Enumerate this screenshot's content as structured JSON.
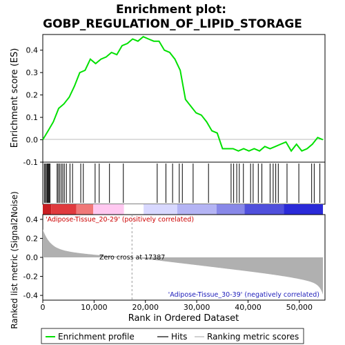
{
  "chart_data": {
    "type": "line",
    "title": "Enrichment plot:",
    "subtitle": "GOBP_REGULATION_OF_LIPID_STORAGE",
    "xlabel": "Rank in Ordered Dataset",
    "ylabel_top": "Enrichment score (ES)",
    "ylabel_bottom": "Ranked list metric (Signal2Noise)",
    "xlim": [
      0,
      55000
    ],
    "es_ylim": [
      -0.1,
      0.47
    ],
    "metric_ylim": [
      -0.45,
      0.45
    ],
    "x_ticks": [
      0,
      10000,
      20000,
      30000,
      40000,
      50000
    ],
    "x_tick_labels": [
      "0",
      "10,000",
      "20,000",
      "30,000",
      "40,000",
      "50,000"
    ],
    "es_ticks": [
      -0.1,
      0.0,
      0.1,
      0.2,
      0.3,
      0.4
    ],
    "es_tick_labels": [
      "-0.1",
      "0.0",
      "0.1",
      "0.2",
      "0.3",
      "0.4"
    ],
    "metric_ticks": [
      -0.4,
      -0.2,
      0.0,
      0.2,
      0.4
    ],
    "metric_tick_labels": [
      "-0.4",
      "-0.2",
      "0.0",
      "0.2",
      "0.4"
    ],
    "annotations": {
      "positive": "'Adipose-Tissue_20-29' (positively correlated)",
      "negative": "'Adipose-Tissue_30-39' (negatively correlated)",
      "zero_cross": "Zero cross at 17387"
    },
    "zero_cross": 17387,
    "n_genes": 54600,
    "legend": [
      "Enrichment profile",
      "Hits",
      "Ranking metric scores"
    ],
    "colors": {
      "es_line": "#00e000",
      "hits": "#000000",
      "metric": "#b0b0b0",
      "pos": "#e8202a",
      "neg": "#2a2ad8"
    },
    "hits": [
      300,
      500,
      700,
      900,
      1000,
      1100,
      1250,
      1400,
      2800,
      3000,
      3300,
      3600,
      3900,
      4200,
      4600,
      5300,
      5800,
      7400,
      7900,
      10200,
      11000,
      13000,
      15700,
      22300,
      24000,
      25300,
      26600,
      27200,
      29300,
      32300,
      36700,
      37200,
      37800,
      38300,
      39100,
      40500,
      41000,
      42000,
      42700,
      44300,
      44900,
      45400,
      45900,
      47600,
      49900,
      52400,
      52900,
      54000
    ],
    "es": [
      0,
      0.04,
      0.08,
      0.14,
      0.16,
      0.19,
      0.24,
      0.3,
      0.31,
      0.36,
      0.34,
      0.36,
      0.37,
      0.39,
      0.38,
      0.42,
      0.43,
      0.45,
      0.44,
      0.46,
      0.45,
      0.44,
      0.44,
      0.4,
      0.39,
      0.36,
      0.31,
      0.18,
      0.15,
      0.12,
      0.11,
      0.08,
      0.04,
      0.03,
      -0.04,
      -0.04,
      -0.04,
      -0.05,
      -0.04,
      -0.05,
      -0.04,
      -0.05,
      -0.03,
      -0.04,
      -0.03,
      -0.02,
      -0.01,
      -0.05,
      -0.02,
      -0.05,
      -0.04,
      -0.02,
      0.01,
      0
    ]
  }
}
